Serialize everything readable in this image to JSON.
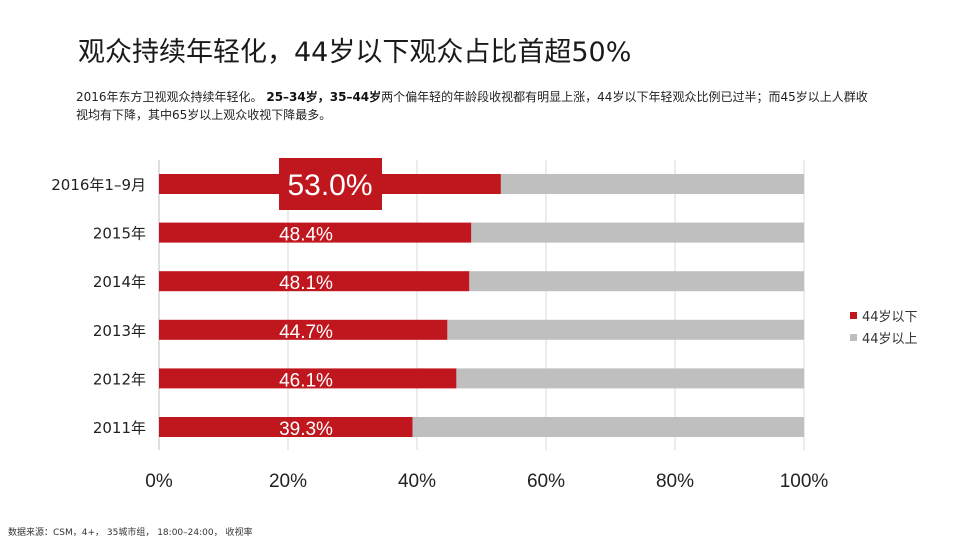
{
  "title": "观众持续年轻化，44岁以下观众占比首超50%",
  "subtitle": {
    "part1": "2016年东方卫视观众持续年轻化。 ",
    "bold": "25–34岁，35–44岁",
    "part2": "两个偏年轻的年龄段收视都有明显上涨，44岁以下年轻观众比例已过半；而45岁以上人群收视均有下降，其中65岁以上观众收视下降最多。"
  },
  "footnote": "数据来源：CSM，4+， 35城市组， 18:00–24:00， 收视率",
  "colors": {
    "under44": "#c0171f",
    "over44": "#bfbfbf",
    "highlight_box": "#c0171f",
    "gridline": "#d9d9d9"
  },
  "chart_data": {
    "type": "bar",
    "orientation": "horizontal",
    "stacked": true,
    "percent": true,
    "categories": [
      "2016年1–9月",
      "2015年",
      "2014年",
      "2013年",
      "2012年",
      "2011年"
    ],
    "series": [
      {
        "name": "44岁以下",
        "values": [
          53.0,
          48.4,
          48.1,
          44.7,
          46.1,
          39.3
        ]
      },
      {
        "name": "44岁以上",
        "values": [
          47.0,
          51.6,
          51.9,
          55.3,
          53.9,
          60.7
        ]
      }
    ],
    "data_labels": [
      "53.0%",
      "48.4%",
      "48.1%",
      "44.7%",
      "46.1%",
      "39.3%"
    ],
    "highlighted_category": "2016年1–9月",
    "xlim": [
      0,
      100
    ],
    "xticks": [
      0,
      20,
      40,
      60,
      80,
      100
    ],
    "xtick_labels": [
      "0%",
      "20%",
      "40%",
      "60%",
      "80%",
      "100%"
    ],
    "grid": true,
    "legend_position": "right"
  }
}
